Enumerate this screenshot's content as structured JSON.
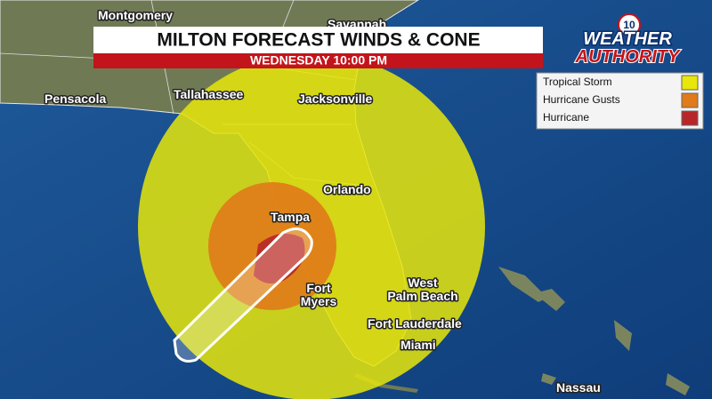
{
  "header": {
    "title": "MILTON FORECAST WINDS & CONE",
    "subtitle": "WEDNESDAY 10:00 PM"
  },
  "logo": {
    "channel": "10",
    "line1": "WEATHER",
    "line2": "AUTHORITY"
  },
  "legend": {
    "items": [
      "Tropical Storm",
      "Hurricane Gusts",
      "Hurricane"
    ]
  },
  "cities": [
    {
      "lines": [
        "Montgomery"
      ]
    },
    {
      "lines": [
        "Savannah"
      ]
    },
    {
      "lines": [
        "Pensacola"
      ]
    },
    {
      "lines": [
        "Tallahassee"
      ]
    },
    {
      "lines": [
        "Jacksonville"
      ]
    },
    {
      "lines": [
        "Orlando"
      ]
    },
    {
      "lines": [
        "Tampa"
      ]
    },
    {
      "lines": [
        "Fort",
        "Myers"
      ]
    },
    {
      "lines": [
        "West",
        "Palm Beach"
      ]
    },
    {
      "lines": [
        "Fort Lauderdale"
      ]
    },
    {
      "lines": [
        "Miami"
      ]
    },
    {
      "lines": [
        "Nassau"
      ]
    }
  ]
}
